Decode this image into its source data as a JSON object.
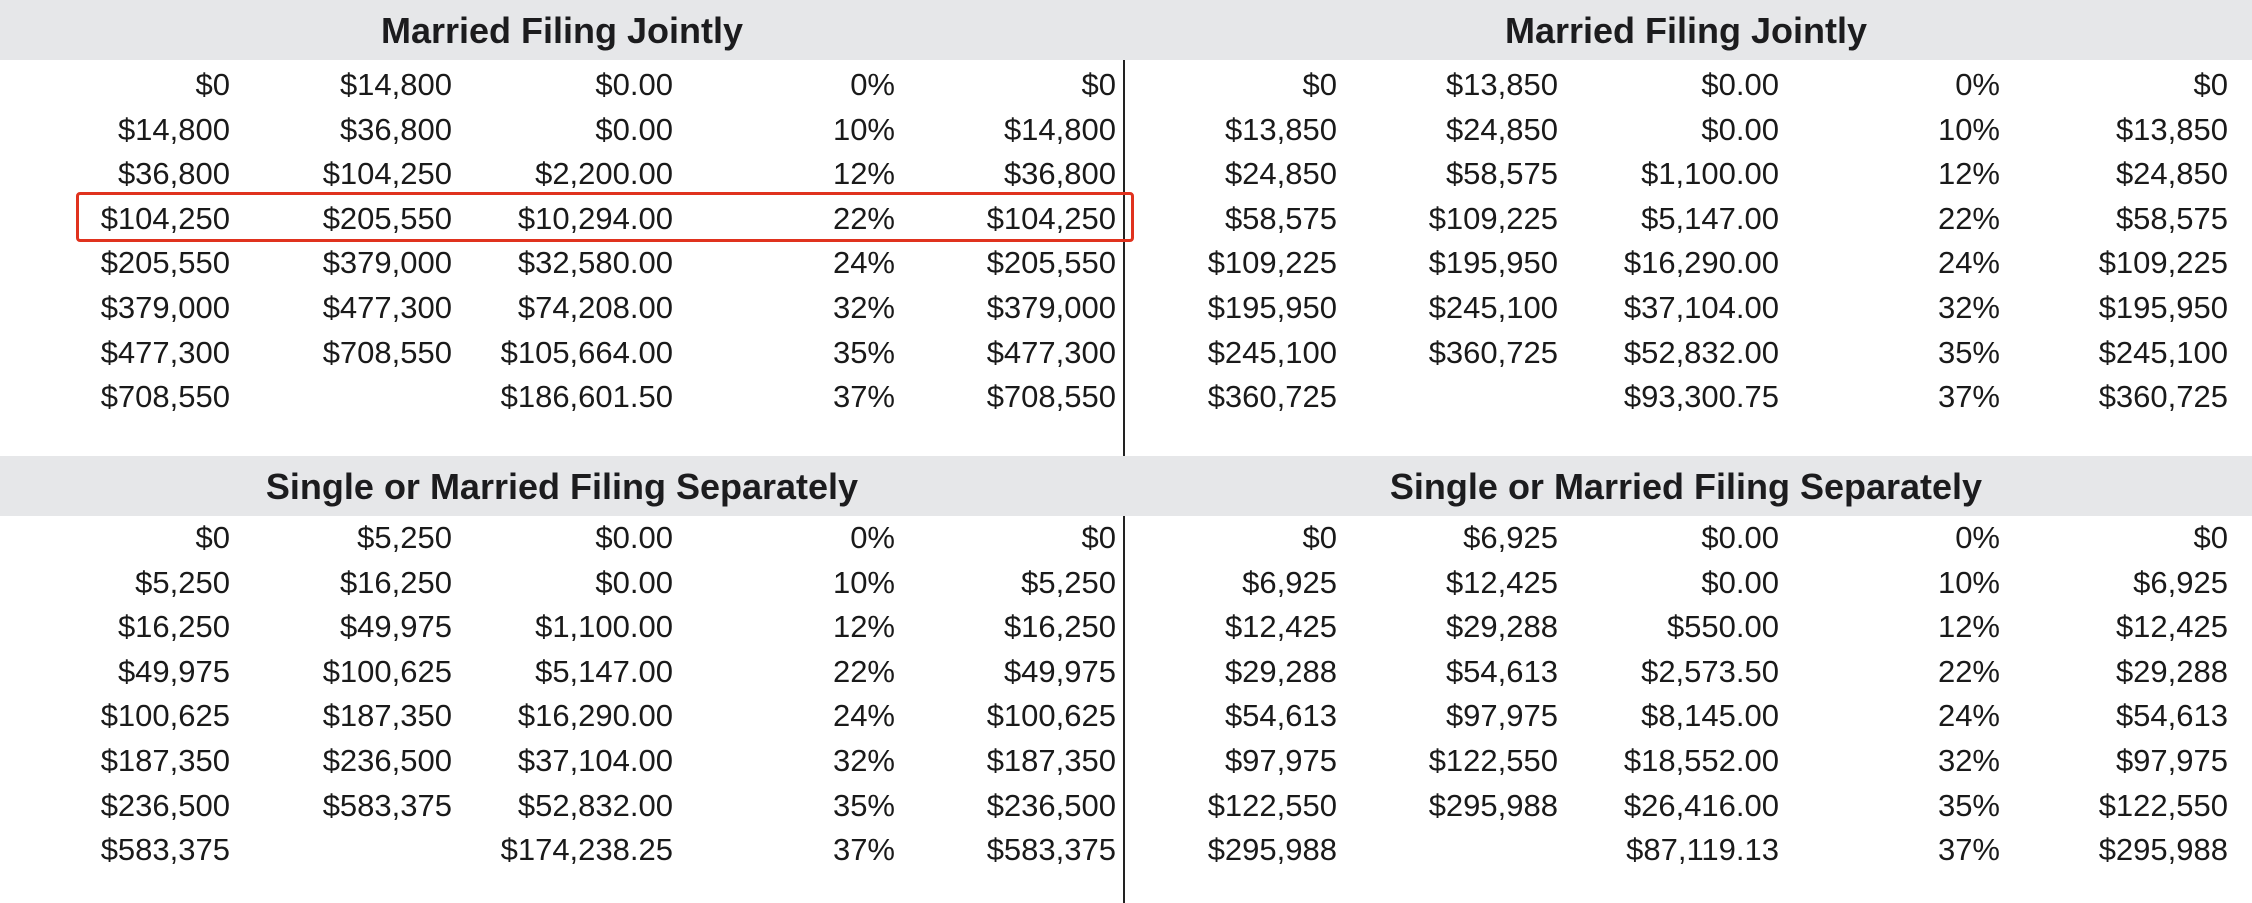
{
  "highlight_color": "#e0321e",
  "band_color": "#e6e7e9",
  "sections": {
    "top_left": {
      "title": "Married Filing Jointly",
      "rows": [
        [
          "$0",
          "$14,800",
          "$0.00",
          "0%",
          "$0"
        ],
        [
          "$14,800",
          "$36,800",
          "$0.00",
          "10%",
          "$14,800"
        ],
        [
          "$36,800",
          "$104,250",
          "$2,200.00",
          "12%",
          "$36,800"
        ],
        [
          "$104,250",
          "$205,550",
          "$10,294.00",
          "22%",
          "$104,250"
        ],
        [
          "$205,550",
          "$379,000",
          "$32,580.00",
          "24%",
          "$205,550"
        ],
        [
          "$379,000",
          "$477,300",
          "$74,208.00",
          "32%",
          "$379,000"
        ],
        [
          "$477,300",
          "$708,550",
          "$105,664.00",
          "35%",
          "$477,300"
        ],
        [
          "$708,550",
          "",
          "$186,601.50",
          "37%",
          "$708,550"
        ]
      ],
      "highlighted_row_index": 3
    },
    "top_right": {
      "title": "Married Filing Jointly",
      "rows": [
        [
          "$0",
          "$13,850",
          "$0.00",
          "0%",
          "$0"
        ],
        [
          "$13,850",
          "$24,850",
          "$0.00",
          "10%",
          "$13,850"
        ],
        [
          "$24,850",
          "$58,575",
          "$1,100.00",
          "12%",
          "$24,850"
        ],
        [
          "$58,575",
          "$109,225",
          "$5,147.00",
          "22%",
          "$58,575"
        ],
        [
          "$109,225",
          "$195,950",
          "$16,290.00",
          "24%",
          "$109,225"
        ],
        [
          "$195,950",
          "$245,100",
          "$37,104.00",
          "32%",
          "$195,950"
        ],
        [
          "$245,100",
          "$360,725",
          "$52,832.00",
          "35%",
          "$245,100"
        ],
        [
          "$360,725",
          "",
          "$93,300.75",
          "37%",
          "$360,725"
        ]
      ]
    },
    "bottom_left": {
      "title": "Single or Married Filing Separately",
      "rows": [
        [
          "$0",
          "$5,250",
          "$0.00",
          "0%",
          "$0"
        ],
        [
          "$5,250",
          "$16,250",
          "$0.00",
          "10%",
          "$5,250"
        ],
        [
          "$16,250",
          "$49,975",
          "$1,100.00",
          "12%",
          "$16,250"
        ],
        [
          "$49,975",
          "$100,625",
          "$5,147.00",
          "22%",
          "$49,975"
        ],
        [
          "$100,625",
          "$187,350",
          "$16,290.00",
          "24%",
          "$100,625"
        ],
        [
          "$187,350",
          "$236,500",
          "$37,104.00",
          "32%",
          "$187,350"
        ],
        [
          "$236,500",
          "$583,375",
          "$52,832.00",
          "35%",
          "$236,500"
        ],
        [
          "$583,375",
          "",
          "$174,238.25",
          "37%",
          "$583,375"
        ]
      ]
    },
    "bottom_right": {
      "title": "Single or Married Filing Separately",
      "rows": [
        [
          "$0",
          "$6,925",
          "$0.00",
          "0%",
          "$0"
        ],
        [
          "$6,925",
          "$12,425",
          "$0.00",
          "10%",
          "$6,925"
        ],
        [
          "$12,425",
          "$29,288",
          "$550.00",
          "12%",
          "$12,425"
        ],
        [
          "$29,288",
          "$54,613",
          "$2,573.50",
          "22%",
          "$29,288"
        ],
        [
          "$54,613",
          "$97,975",
          "$8,145.00",
          "24%",
          "$54,613"
        ],
        [
          "$97,975",
          "$122,550",
          "$18,552.00",
          "32%",
          "$97,975"
        ],
        [
          "$122,550",
          "$295,988",
          "$26,416.00",
          "35%",
          "$122,550"
        ],
        [
          "$295,988",
          "",
          "$87,119.13",
          "37%",
          "$295,988"
        ]
      ]
    }
  }
}
